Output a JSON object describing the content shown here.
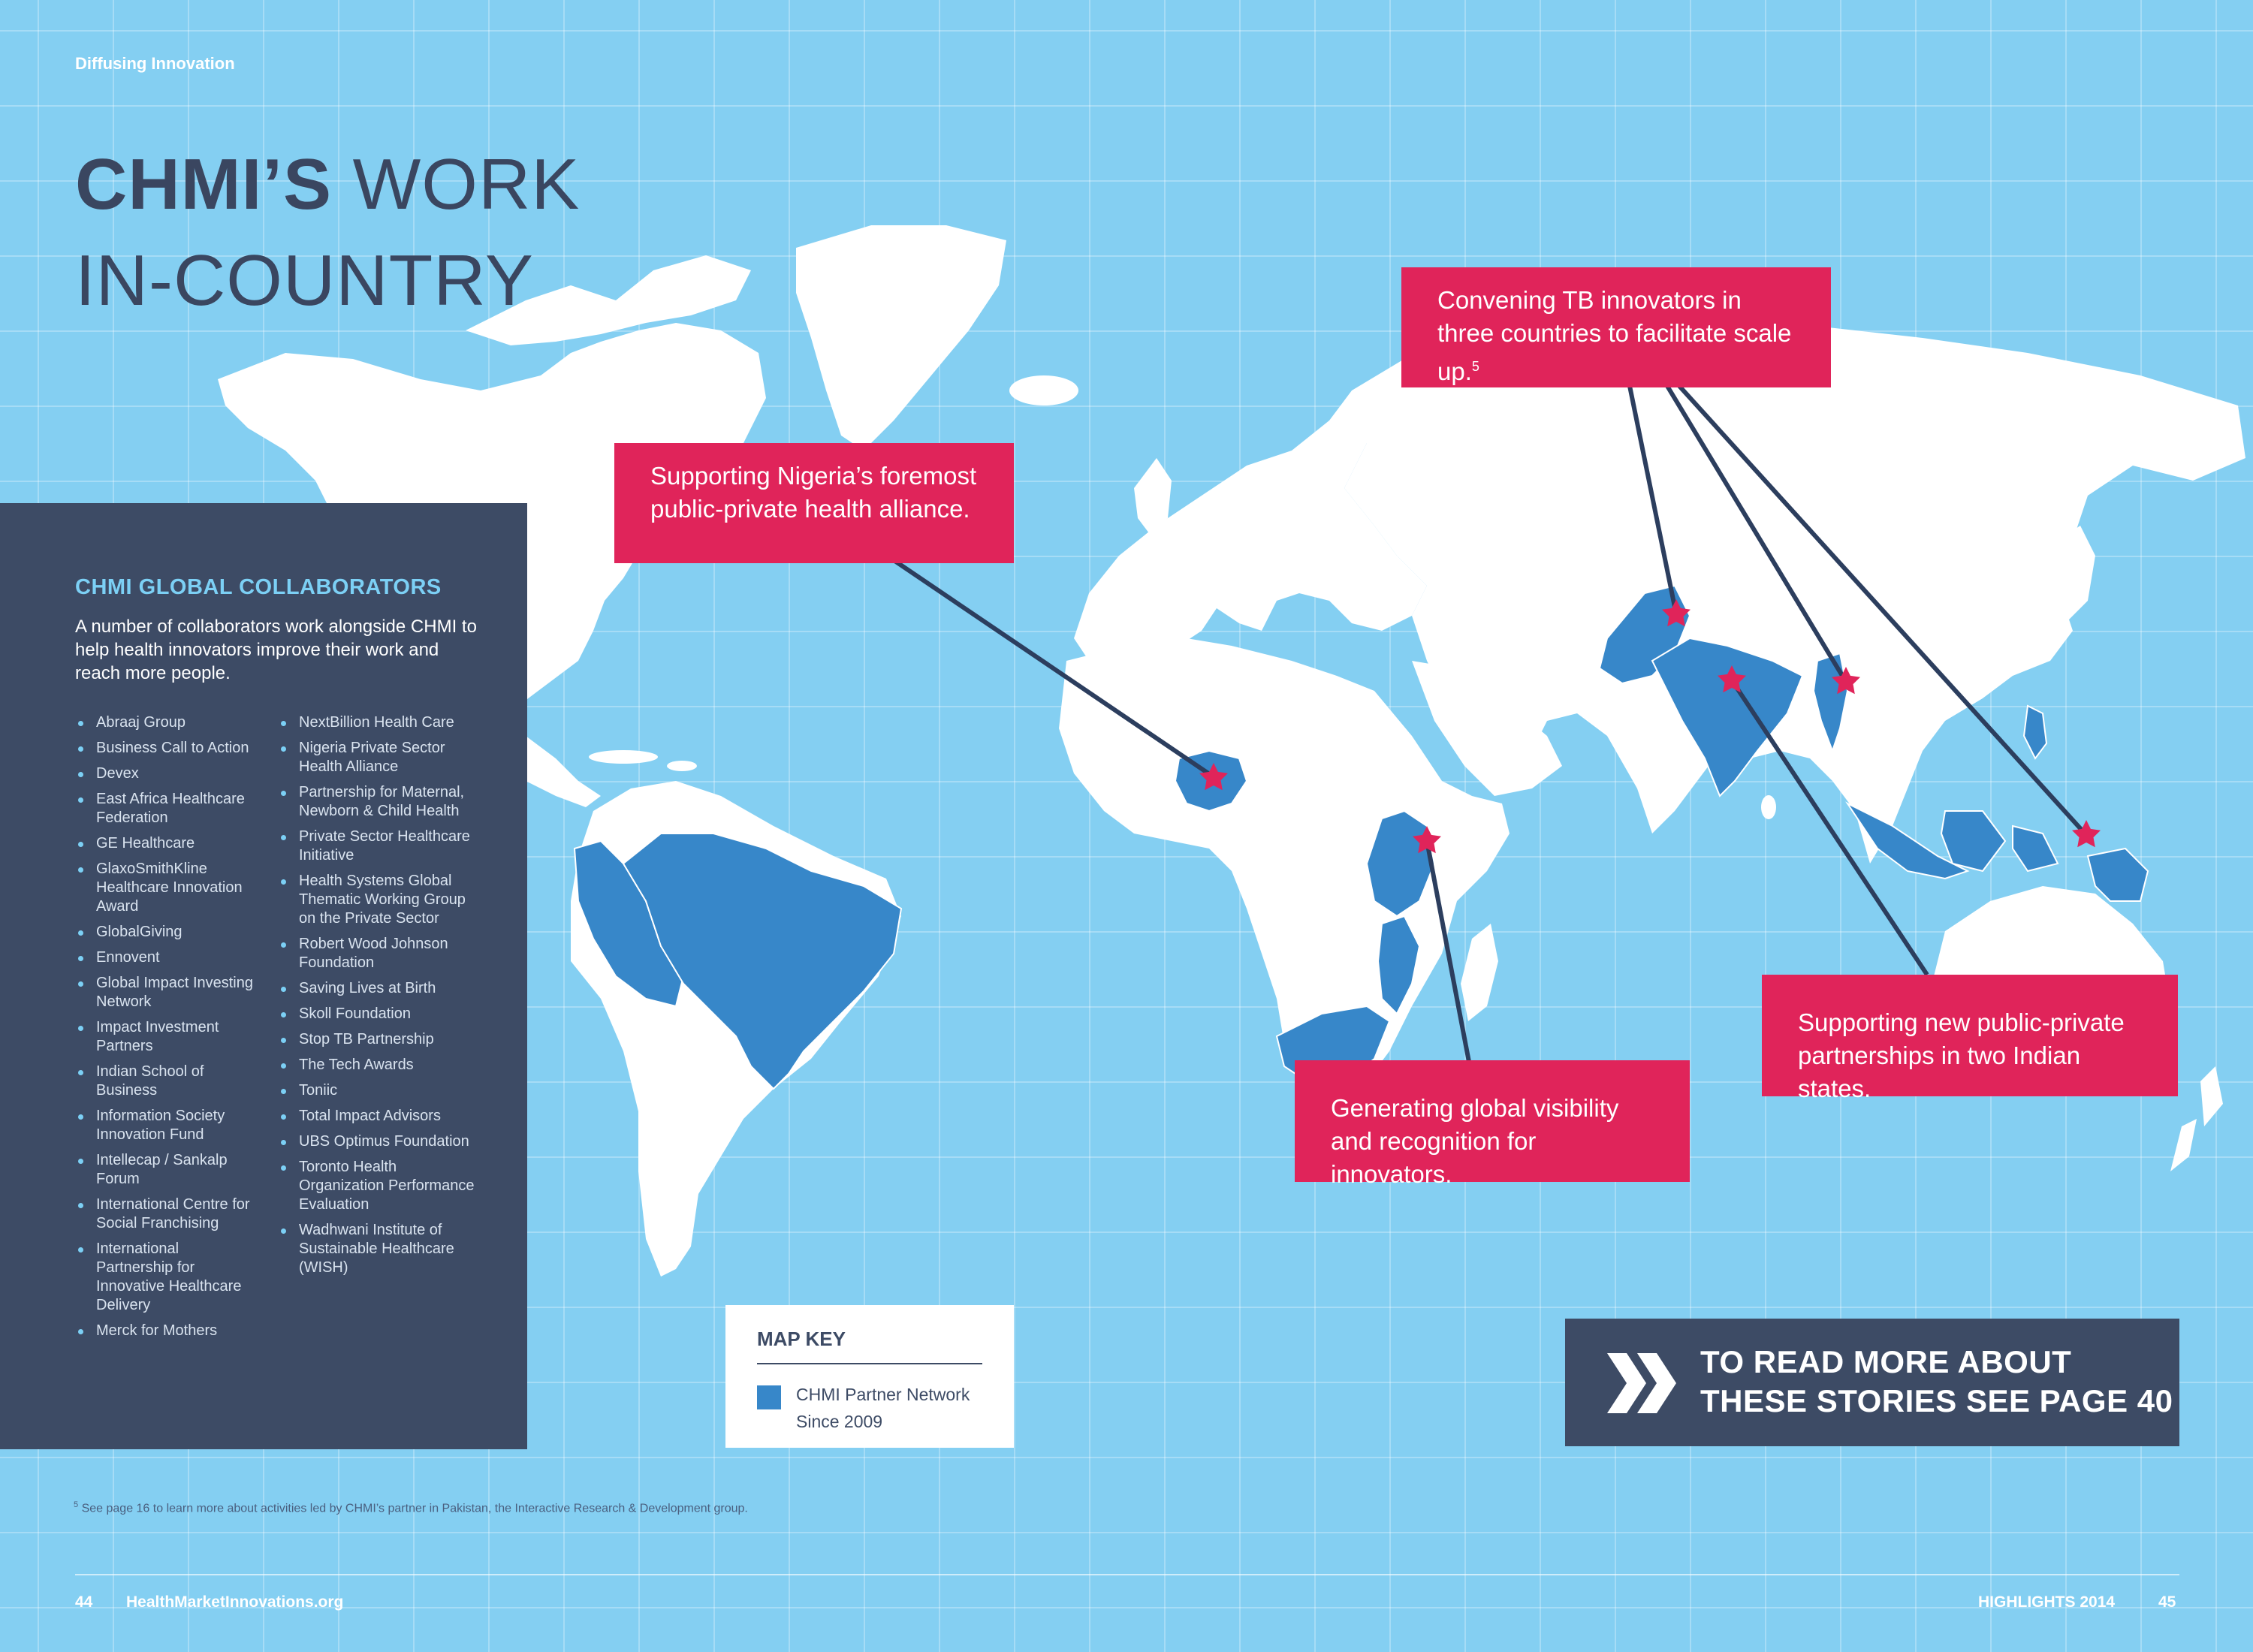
{
  "header": {
    "section_label": "Diffusing Innovation",
    "title_bold": "CHMI’S",
    "title_rest": " WORK",
    "title_line2": "IN-COUNTRY"
  },
  "callouts": {
    "nigeria": "Supporting Nigeria’s foremost public-private health alliance.",
    "tb_text": "Convening TB innovators in three countries to facilitate scale up.",
    "tb_footnote": "5",
    "india": "Supporting new public-private partnerships in two Indian states.",
    "kenya": "Generating global visibility and recognition for innovators."
  },
  "collaborators": {
    "heading": "CHMI GLOBAL COLLABORATORS",
    "intro": "A number of collaborators work alongside CHMI to help health innovators improve their work and reach more people.",
    "column1": [
      "Abraaj Group",
      "Business Call to Action",
      "Devex",
      "East Africa Healthcare Federation",
      "GE Healthcare",
      "GlaxoSmithKline Healthcare Innovation Award",
      "GlobalGiving",
      "Ennovent",
      "Global Impact Investing Network",
      "Impact Investment Partners",
      "Indian School of Business",
      "Information Society Innovation Fund",
      "Intellecap / Sankalp Forum",
      "International Centre for Social Franchising",
      "International Partnership for Innovative Healthcare Delivery",
      "Merck for Mothers"
    ],
    "column2": [
      "NextBillion Health Care",
      "Nigeria Private Sector Health Alliance",
      "Partnership for Maternal, Newborn & Child Health",
      "Private Sector Healthcare Initiative",
      "Health Systems Global Thematic Working Group on the Private Sector",
      "Robert Wood Johnson Foundation",
      "Saving Lives at Birth",
      "Skoll Foundation",
      "Stop TB Partnership",
      "The Tech Awards",
      "Toniic",
      "Total Impact Advisors",
      "UBS Optimus Foundation",
      "Toronto Health Organization Performance Evaluation",
      "Wadhwani Institute of Sustainable Healthcare (WISH)"
    ]
  },
  "map_key": {
    "heading": "MAP KEY",
    "item_line1": "CHMI Partner Network",
    "item_line2": "Since 2009",
    "partner_color": "#3787c9"
  },
  "map": {
    "partner_countries": [
      "Peru",
      "Bolivia",
      "Brazil",
      "Nigeria",
      "Kenya",
      "Tanzania",
      "Mozambique",
      "South Africa",
      "Pakistan",
      "India",
      "Myanmar",
      "Philippines",
      "Indonesia",
      "Papua New Guinea"
    ],
    "starred_locations": [
      "Nigeria",
      "Kenya",
      "Pakistan",
      "India",
      "Myanmar",
      "Indonesia"
    ],
    "star_color": "#e0245a"
  },
  "read_more": {
    "line1": "TO READ MORE ABOUT",
    "line2": "THESE STORIES SEE PAGE 40"
  },
  "footnote": {
    "marker": "5",
    "text": "See page 16 to learn more about activities led by CHMI’s partner in Pakistan, the Interactive Research & Development group."
  },
  "footer": {
    "page_left": "44",
    "site": "HealthMarketInnovations.org",
    "report": "HIGHLIGHTS 2014",
    "page_right": "45"
  },
  "colors": {
    "background": "#84cff2",
    "callout": "#e0245a",
    "panel": "#3d4b65",
    "land": "#ffffff"
  }
}
